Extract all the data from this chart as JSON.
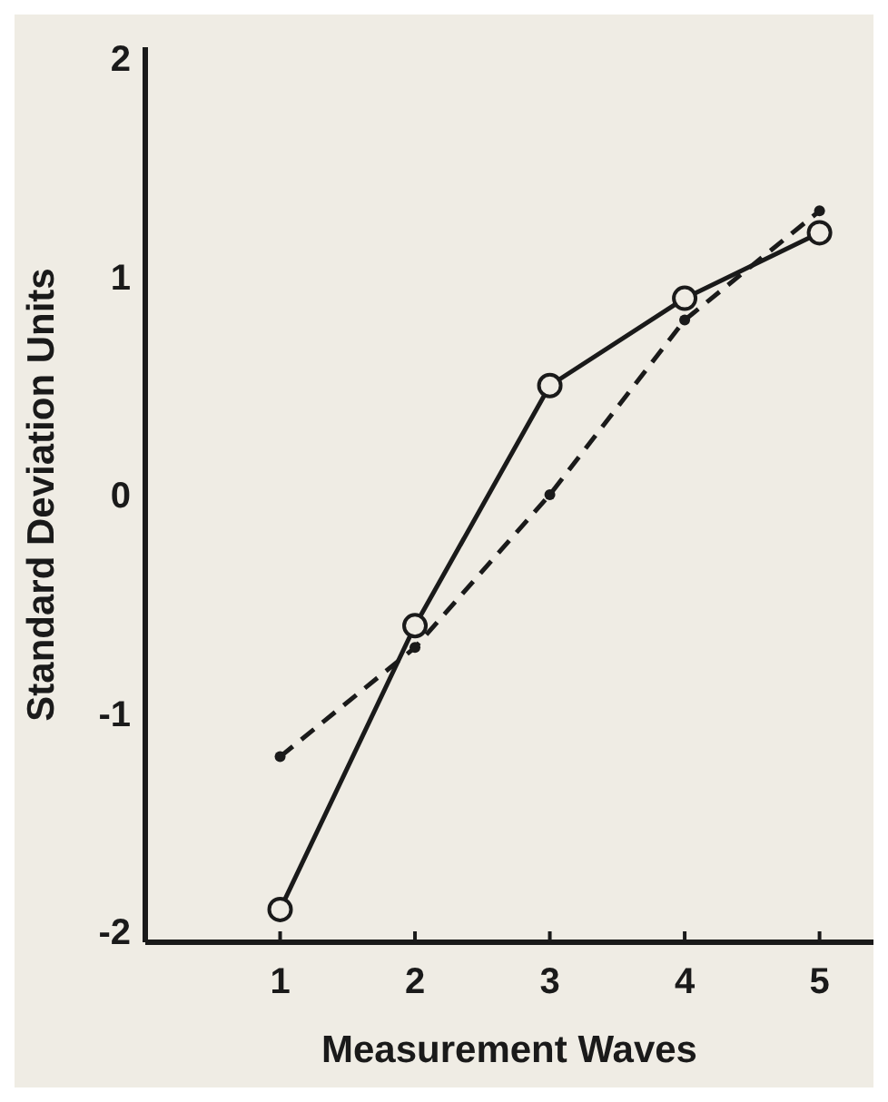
{
  "chart_data": {
    "type": "line",
    "xlabel": "Measurement Waves",
    "ylabel": "Standard Deviation Units",
    "x": [
      1,
      2,
      3,
      4,
      5
    ],
    "series": [
      {
        "color": "#1a1a1a",
        "values": [
          -1.9,
          -0.6,
          0.5,
          0.9,
          1.2
        ],
        "line_style": "solid",
        "marker": "circle"
      },
      {
        "color": "#1a1a1a",
        "values": [
          -1.2,
          -0.7,
          0.0,
          0.8,
          1.3
        ],
        "line_style": "dashed",
        "marker": "circle"
      }
    ],
    "xlim": [
      0,
      5.4
    ],
    "ylim": [
      -2.05,
      2.05
    ],
    "xticks": [
      1,
      2,
      3,
      4,
      5
    ],
    "yticks": [
      -2,
      -1,
      0,
      1,
      2
    ],
    "grid": false,
    "legend": false
  }
}
